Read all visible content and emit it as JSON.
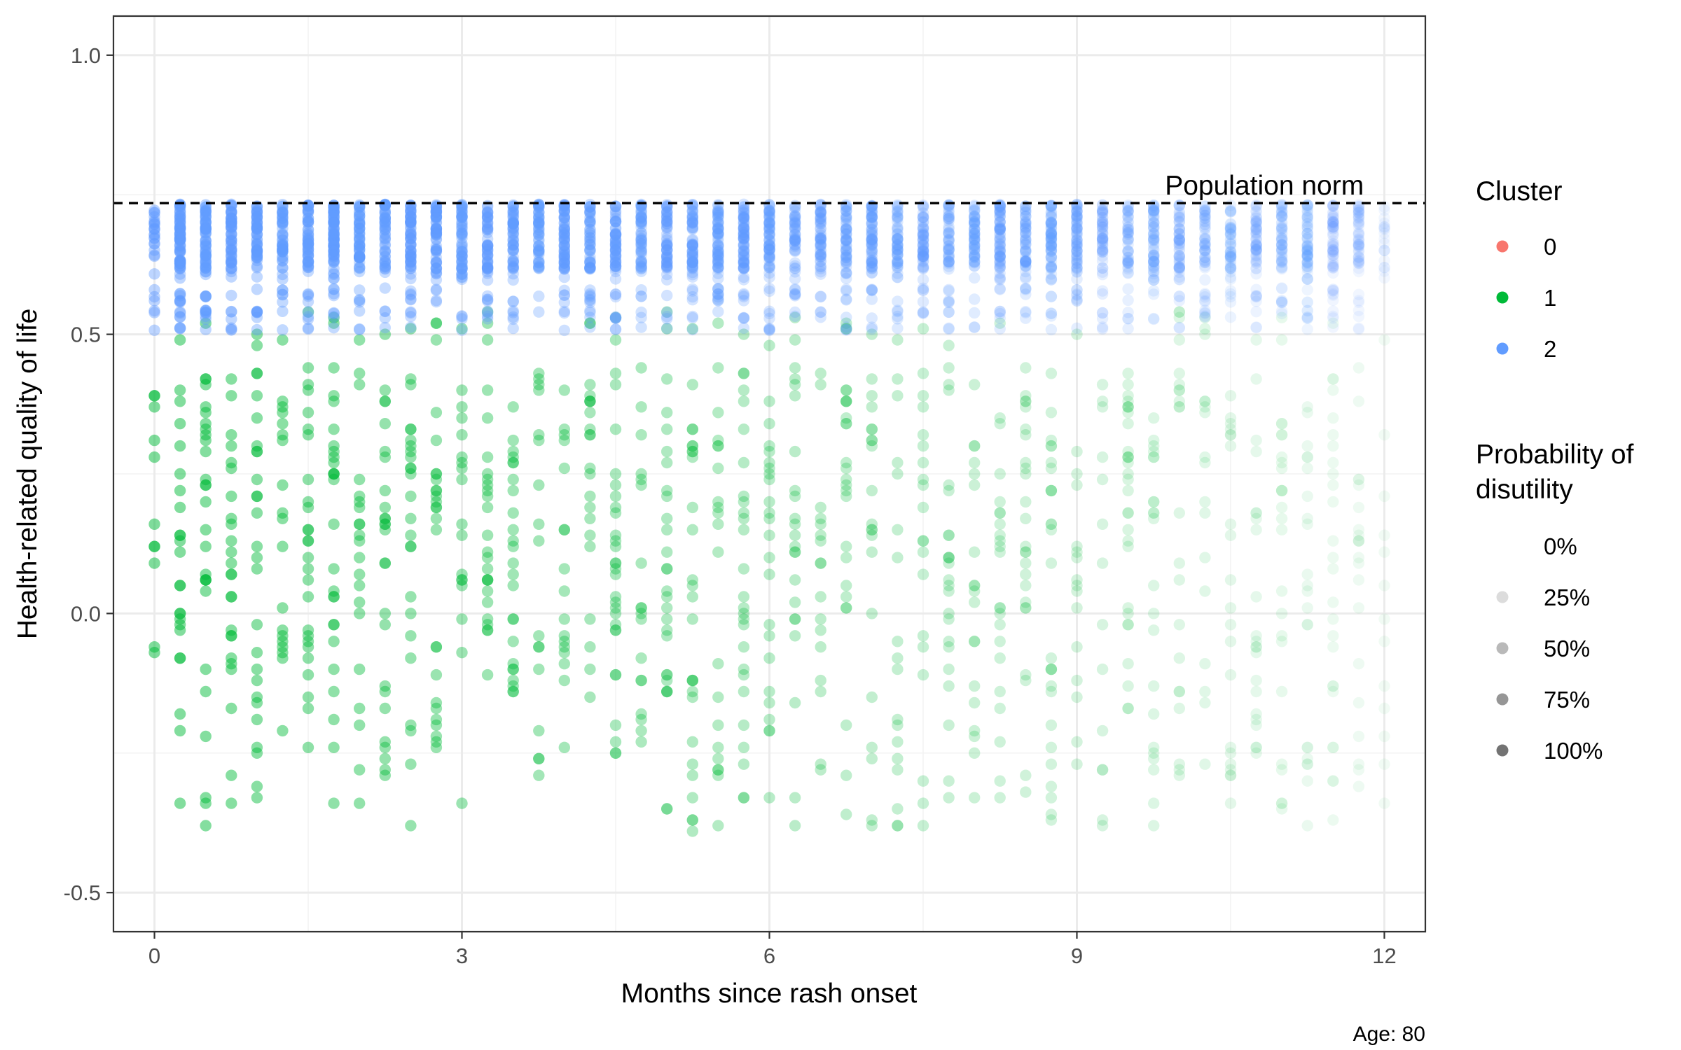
{
  "chart_data": {
    "type": "scatter",
    "xlabel": "Months since rash onset",
    "ylabel": "Health-related quality of life",
    "xlim": [
      -0.4,
      12.4
    ],
    "ylim": [
      -0.57,
      1.07
    ],
    "x_ticks": [
      0,
      3,
      6,
      9,
      12
    ],
    "x_tick_labels": [
      "0",
      "3",
      "6",
      "9",
      "12"
    ],
    "y_ticks": [
      -0.5,
      0.0,
      0.5,
      1.0
    ],
    "y_tick_labels": [
      "-0.5",
      "0.0",
      "0.5",
      "1.0"
    ],
    "grid": true,
    "reference_line": {
      "y": 0.735,
      "style": "dashed",
      "label": "Population norm"
    },
    "caption": "Age: 80",
    "legend_position": "right",
    "legend_cluster": {
      "title": "Cluster",
      "items": [
        {
          "label": "0",
          "color": "#F8766D"
        },
        {
          "label": "1",
          "color": "#00BA38"
        },
        {
          "label": "2",
          "color": "#619CFF"
        }
      ]
    },
    "legend_probability": {
      "title_line1": "Probability of",
      "title_line2": "disutility",
      "items": [
        {
          "label": "0%",
          "alpha": 0.0
        },
        {
          "label": "25%",
          "alpha": 0.25
        },
        {
          "label": "50%",
          "alpha": 0.5
        },
        {
          "label": "75%",
          "alpha": 0.75
        },
        {
          "label": "100%",
          "alpha": 1.0
        }
      ]
    },
    "series": [
      {
        "name": "1",
        "cluster": "1",
        "color": "#00BA38",
        "x_range": [
          0,
          12
        ],
        "y_range": [
          -0.38,
          0.54
        ],
        "alpha_trend": "decreasing with months since rash onset",
        "points_estimated": 1100
      },
      {
        "name": "2",
        "cluster": "2",
        "color": "#619CFF",
        "x_range": [
          0,
          12
        ],
        "y_range": [
          0.5,
          0.73
        ],
        "alpha_trend": "decreasing with months since rash onset",
        "points_estimated": 3000
      }
    ]
  }
}
